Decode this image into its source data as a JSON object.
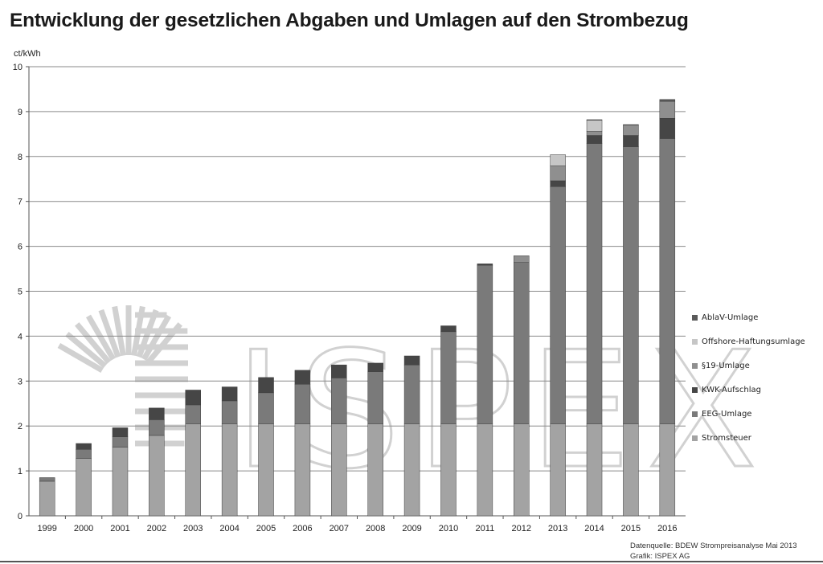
{
  "title": "Entwicklung der gesetzlichen Abgaben und Umlagen auf den Strombezug",
  "footer": {
    "source": "Datenquelle:  BDEW Strompreisanalyse Mai 2013",
    "credit": "Grafik: ISPEX AG"
  },
  "watermark": {
    "text": "ISPEX"
  },
  "chart_data": {
    "type": "bar",
    "stacked": true,
    "ylabel": "ct/kWh",
    "xlabel": "",
    "ylim": [
      0,
      10
    ],
    "y_ticks": [
      0,
      1,
      2,
      3,
      4,
      5,
      6,
      7,
      8,
      9,
      10
    ],
    "grid": true,
    "legend_position": "right",
    "categories": [
      "1999",
      "2000",
      "2001",
      "2002",
      "2003",
      "2004",
      "2005",
      "2006",
      "2007",
      "2008",
      "2009",
      "2010",
      "2011",
      "2012",
      "2013",
      "2014",
      "2015",
      "2016"
    ],
    "series": [
      {
        "name": "Stromsteuer",
        "color": "#a3a3a3",
        "values": [
          0.77,
          1.28,
          1.53,
          1.79,
          2.05,
          2.05,
          2.05,
          2.05,
          2.05,
          2.05,
          2.05,
          2.05,
          2.05,
          2.05,
          2.05,
          2.05,
          2.05,
          2.05
        ]
      },
      {
        "name": "EEG-Umlage",
        "color": "#7a7a7a",
        "values": [
          0.08,
          0.2,
          0.23,
          0.35,
          0.42,
          0.51,
          0.69,
          0.88,
          1.02,
          1.16,
          1.31,
          2.05,
          3.53,
          3.59,
          5.28,
          6.24,
          6.17,
          6.35
        ]
      },
      {
        "name": "KWK-Aufschlag",
        "color": "#464646",
        "values": [
          0.0,
          0.13,
          0.2,
          0.26,
          0.33,
          0.31,
          0.34,
          0.31,
          0.29,
          0.19,
          0.2,
          0.13,
          0.03,
          0.0,
          0.13,
          0.18,
          0.25,
          0.45
        ]
      },
      {
        "name": "§19-Umlage",
        "color": "#8f8f8f",
        "values": [
          0.0,
          0.0,
          0.0,
          0.0,
          0.0,
          0.0,
          0.0,
          0.0,
          0.0,
          0.0,
          0.0,
          0.0,
          0.0,
          0.15,
          0.33,
          0.09,
          0.23,
          0.38
        ]
      },
      {
        "name": "Offshore-Haftungsumlage",
        "color": "#c6c6c6",
        "values": [
          0.0,
          0.0,
          0.0,
          0.0,
          0.0,
          0.0,
          0.0,
          0.0,
          0.0,
          0.0,
          0.0,
          0.0,
          0.0,
          0.0,
          0.25,
          0.25,
          0.0,
          0.0
        ]
      },
      {
        "name": "AblaV-Umlage",
        "color": "#5a5a5a",
        "values": [
          0.0,
          0.0,
          0.0,
          0.0,
          0.0,
          0.0,
          0.0,
          0.0,
          0.0,
          0.0,
          0.0,
          0.0,
          0.0,
          0.0,
          0.0,
          0.01,
          0.01,
          0.04
        ]
      }
    ]
  }
}
